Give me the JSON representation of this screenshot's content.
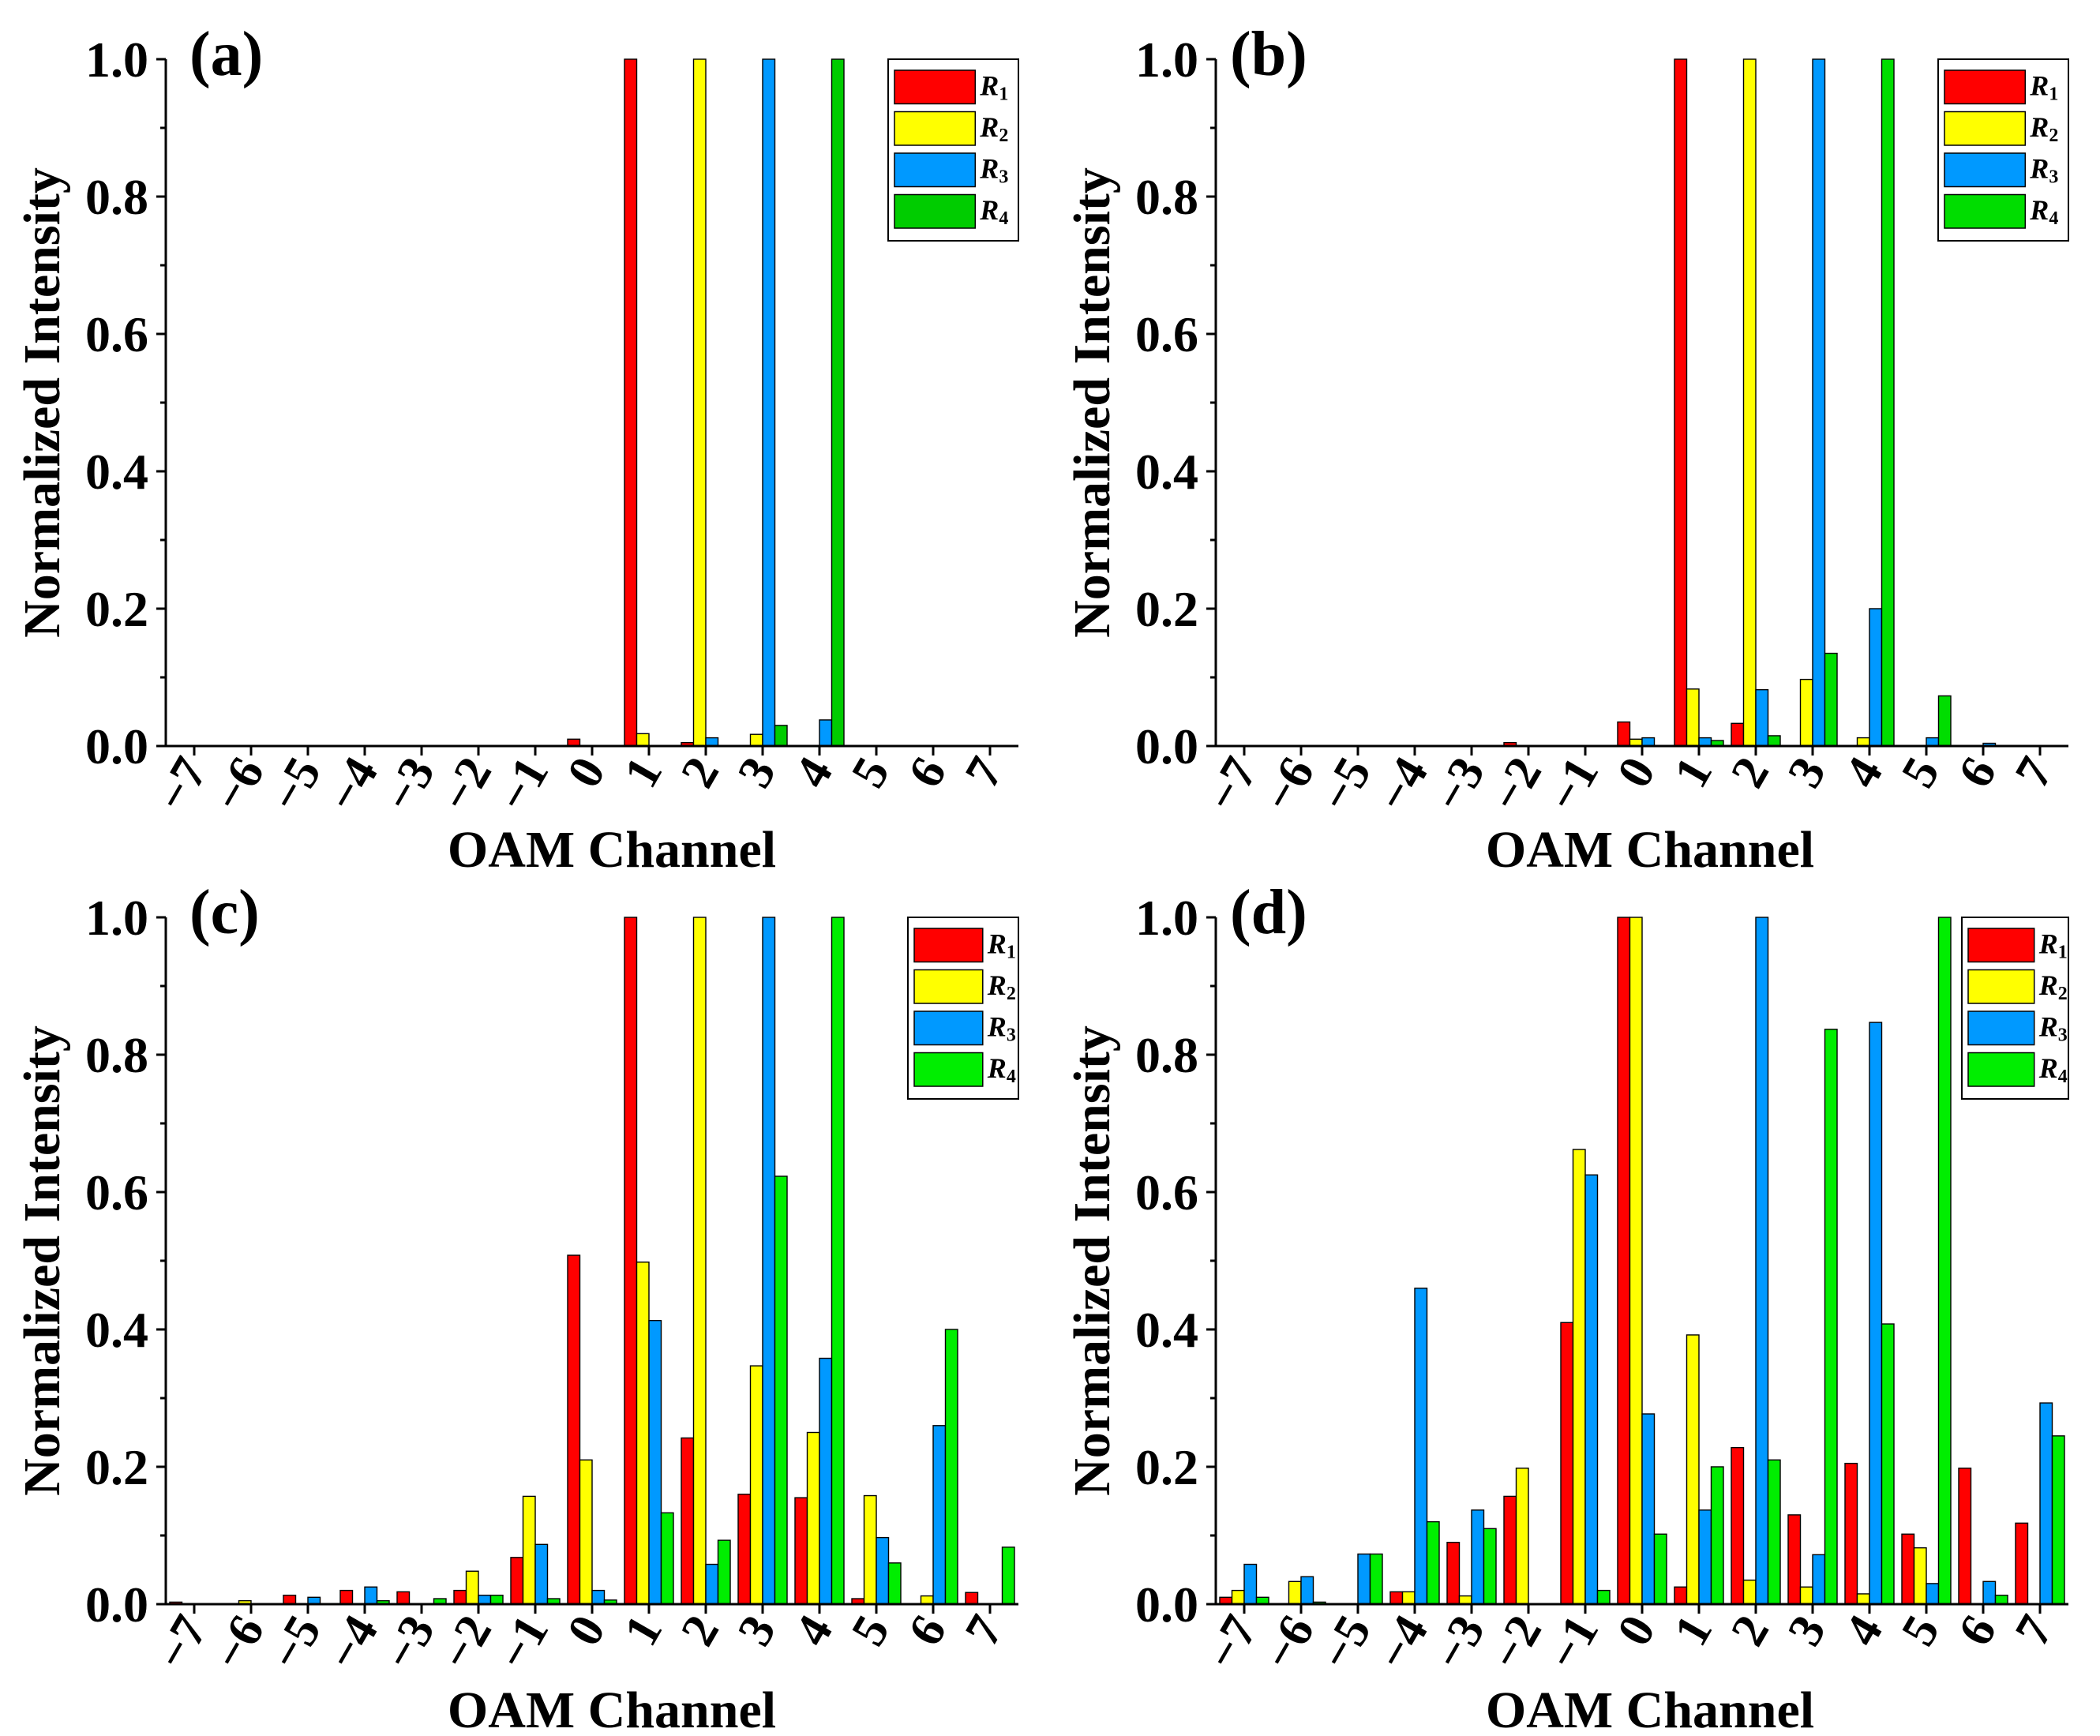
{
  "figure": {
    "x_axis_label": "OAM Channel",
    "y_axis_label": "Normalized Intensity",
    "y_tick_labels": [
      "0.0",
      "0.2",
      "0.4",
      "0.6",
      "0.8",
      "1.0"
    ],
    "x_tick_labels": [
      "−7",
      "−6",
      "−5",
      "−4",
      "−3",
      "−2",
      "−1",
      "0",
      "1",
      "2",
      "3",
      "4",
      "5",
      "6",
      "7"
    ]
  },
  "chart_data": [
    {
      "type": "bar",
      "panel_label": "(a)",
      "xlabel": "OAM Channel",
      "ylabel": "Normalized Intensity",
      "ylim": [
        0,
        1.0
      ],
      "legend_position": "top-right",
      "categories": [
        -7,
        -6,
        -5,
        -4,
        -3,
        -2,
        -1,
        0,
        1,
        2,
        3,
        4,
        5,
        6,
        7
      ],
      "series": [
        {
          "name": "R",
          "subscript": "1",
          "color": "#ff0000",
          "values": [
            0,
            0,
            0,
            0,
            0,
            0,
            0,
            0.01,
            1.0,
            0.005,
            0,
            0,
            0,
            0,
            0
          ]
        },
        {
          "name": "R",
          "subscript": "2",
          "color": "#ffff00",
          "values": [
            0,
            0,
            0,
            0,
            0,
            0,
            0,
            0,
            0.018,
            1.0,
            0.017,
            0,
            0,
            0,
            0
          ]
        },
        {
          "name": "R",
          "subscript": "3",
          "color": "#0099ff",
          "values": [
            0,
            0,
            0,
            0,
            0,
            0,
            0,
            0,
            0,
            0.012,
            1.0,
            0.038,
            0,
            0,
            0
          ]
        },
        {
          "name": "R",
          "subscript": "4",
          "color": "#00cc00",
          "values": [
            0,
            0,
            0,
            0,
            0,
            0,
            0,
            0,
            0,
            0,
            0.03,
            1.0,
            0,
            0,
            0
          ]
        }
      ]
    },
    {
      "type": "bar",
      "panel_label": "(b)",
      "xlabel": "OAM Channel",
      "ylabel": "Normalized Intensity",
      "ylim": [
        0,
        1.0
      ],
      "legend_position": "top-right",
      "categories": [
        -7,
        -6,
        -5,
        -4,
        -3,
        -2,
        -1,
        0,
        1,
        2,
        3,
        4,
        5,
        6,
        7
      ],
      "series": [
        {
          "name": "R",
          "subscript": "1",
          "color": "#ff0000",
          "values": [
            0,
            0,
            0,
            0,
            0,
            0.005,
            0,
            0.035,
            1.0,
            0.033,
            0,
            0,
            0,
            0,
            0
          ]
        },
        {
          "name": "R",
          "subscript": "2",
          "color": "#ffff00",
          "values": [
            0,
            0,
            0,
            0,
            0,
            0,
            0,
            0.01,
            0.083,
            1.0,
            0.097,
            0.012,
            0,
            0,
            0
          ]
        },
        {
          "name": "R",
          "subscript": "3",
          "color": "#0099ff",
          "values": [
            0,
            0,
            0,
            0,
            0,
            0,
            0,
            0.012,
            0.012,
            0.082,
            1.0,
            0.2,
            0.012,
            0.004,
            0
          ]
        },
        {
          "name": "R",
          "subscript": "4",
          "color": "#00dd00",
          "values": [
            0,
            0,
            0,
            0,
            0,
            0,
            0,
            0,
            0.008,
            0.015,
            0.135,
            1.0,
            0.073,
            0,
            0
          ]
        }
      ]
    },
    {
      "type": "bar",
      "panel_label": "(c)",
      "xlabel": "OAM Channel",
      "ylabel": "Normalized Intensity",
      "ylim": [
        0,
        1.0
      ],
      "legend_position": "top-right",
      "categories": [
        -7,
        -6,
        -5,
        -4,
        -3,
        -2,
        -1,
        0,
        1,
        2,
        3,
        4,
        5,
        6,
        7
      ],
      "series": [
        {
          "name": "R",
          "subscript": "1",
          "color": "#ff0000",
          "values": [
            0.003,
            0,
            0.013,
            0.02,
            0.018,
            0.02,
            0.068,
            0.508,
            1.0,
            0.242,
            0.16,
            0.155,
            0.008,
            0,
            0.017
          ]
        },
        {
          "name": "R",
          "subscript": "2",
          "color": "#ffff00",
          "values": [
            0,
            0.005,
            0,
            0,
            0,
            0.048,
            0.157,
            0.21,
            0.498,
            1.0,
            0.347,
            0.25,
            0.158,
            0.012,
            0
          ]
        },
        {
          "name": "R",
          "subscript": "3",
          "color": "#0099ff",
          "values": [
            0,
            0,
            0.01,
            0.025,
            0,
            0.013,
            0.087,
            0.02,
            0.413,
            0.058,
            1.0,
            0.358,
            0.097,
            0.26,
            0
          ]
        },
        {
          "name": "R",
          "subscript": "4",
          "color": "#00ee00",
          "values": [
            0,
            0,
            0,
            0.005,
            0.008,
            0.013,
            0.008,
            0.006,
            0.133,
            0.093,
            0.623,
            1.0,
            0.06,
            0.4,
            0.083
          ]
        }
      ]
    },
    {
      "type": "bar",
      "panel_label": "(d)",
      "xlabel": "OAM Channel",
      "ylabel": "Normalized Intensity",
      "ylim": [
        0,
        1.0
      ],
      "legend_position": "top-right",
      "categories": [
        -7,
        -6,
        -5,
        -4,
        -3,
        -2,
        -1,
        0,
        1,
        2,
        3,
        4,
        5,
        6,
        7
      ],
      "series": [
        {
          "name": "R",
          "subscript": "1",
          "color": "#ff0000",
          "values": [
            0.01,
            0,
            0,
            0.018,
            0.09,
            0.157,
            0.41,
            1.0,
            0.025,
            0.228,
            0.13,
            0.205,
            0.102,
            0.198,
            0.118
          ]
        },
        {
          "name": "R",
          "subscript": "2",
          "color": "#ffff00",
          "values": [
            0.02,
            0.033,
            0,
            0.018,
            0.012,
            0.198,
            0.662,
            1.0,
            0.392,
            0.035,
            0.025,
            0.015,
            0.082,
            0,
            0
          ]
        },
        {
          "name": "R",
          "subscript": "3",
          "color": "#0099ff",
          "values": [
            0.058,
            0.04,
            0.073,
            0.46,
            0.137,
            0,
            0.625,
            0.277,
            0.137,
            1.0,
            0.072,
            0.847,
            0.03,
            0.033,
            0.293
          ]
        },
        {
          "name": "R",
          "subscript": "4",
          "color": "#00ee00",
          "values": [
            0.01,
            0.003,
            0.073,
            0.12,
            0.11,
            0,
            0.02,
            0.102,
            0.2,
            0.21,
            0.837,
            0.408,
            1.0,
            0.013,
            0.245
          ]
        }
      ]
    }
  ]
}
